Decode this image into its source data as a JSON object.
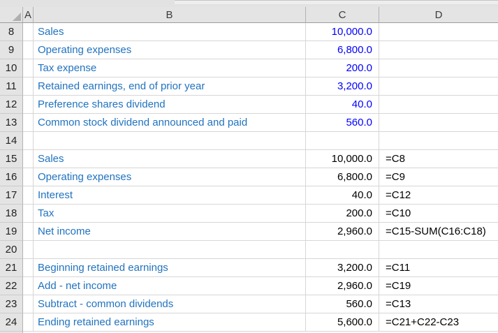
{
  "app": "spreadsheet",
  "colors": {
    "label_text": "#2173bf",
    "input_value": "#0000ff",
    "computed_value": "#000000",
    "header_bg": "#e4e4e4",
    "gridline": "#d6d6d6"
  },
  "column_headers": [
    "A",
    "B",
    "C",
    "D"
  ],
  "rows": [
    {
      "num": "8",
      "label": "Sales",
      "value": "10,000.0",
      "value_style": "input",
      "formula": ""
    },
    {
      "num": "9",
      "label": "Operating expenses",
      "value": "6,800.0",
      "value_style": "input",
      "formula": ""
    },
    {
      "num": "10",
      "label": "Tax expense",
      "value": "200.0",
      "value_style": "input",
      "formula": ""
    },
    {
      "num": "11",
      "label": "Retained earnings, end of prior year",
      "value": "3,200.0",
      "value_style": "input",
      "formula": ""
    },
    {
      "num": "12",
      "label": "Preference shares dividend",
      "value": "40.0",
      "value_style": "input",
      "formula": ""
    },
    {
      "num": "13",
      "label": "Common stock dividend announced and paid",
      "value": "560.0",
      "value_style": "input",
      "formula": ""
    },
    {
      "num": "14",
      "label": "",
      "value": "",
      "value_style": "input",
      "formula": ""
    },
    {
      "num": "15",
      "label": "Sales",
      "value": "10,000.0",
      "value_style": "computed",
      "formula": "=C8"
    },
    {
      "num": "16",
      "label": "Operating expenses",
      "value": "6,800.0",
      "value_style": "computed",
      "formula": "=C9"
    },
    {
      "num": "17",
      "label": "Interest",
      "value": "40.0",
      "value_style": "computed",
      "formula": "=C12"
    },
    {
      "num": "18",
      "label": "Tax",
      "value": "200.0",
      "value_style": "computed",
      "formula": "=C10"
    },
    {
      "num": "19",
      "label": "Net income",
      "value": "2,960.0",
      "value_style": "computed",
      "formula": "=C15-SUM(C16:C18)"
    },
    {
      "num": "20",
      "label": "",
      "value": "",
      "value_style": "computed",
      "formula": ""
    },
    {
      "num": "21",
      "label": "Beginning retained earnings",
      "value": "3,200.0",
      "value_style": "computed",
      "formula": "=C11"
    },
    {
      "num": "22",
      "label": "Add - net income",
      "value": "2,960.0",
      "value_style": "computed",
      "formula": "=C19"
    },
    {
      "num": "23",
      "label": "Subtract - common dividends",
      "value": "560.0",
      "value_style": "computed",
      "formula": "=C13"
    },
    {
      "num": "24",
      "label": "Ending retained earnings",
      "value": "5,600.0",
      "value_style": "computed",
      "formula": "=C21+C22-C23"
    }
  ]
}
